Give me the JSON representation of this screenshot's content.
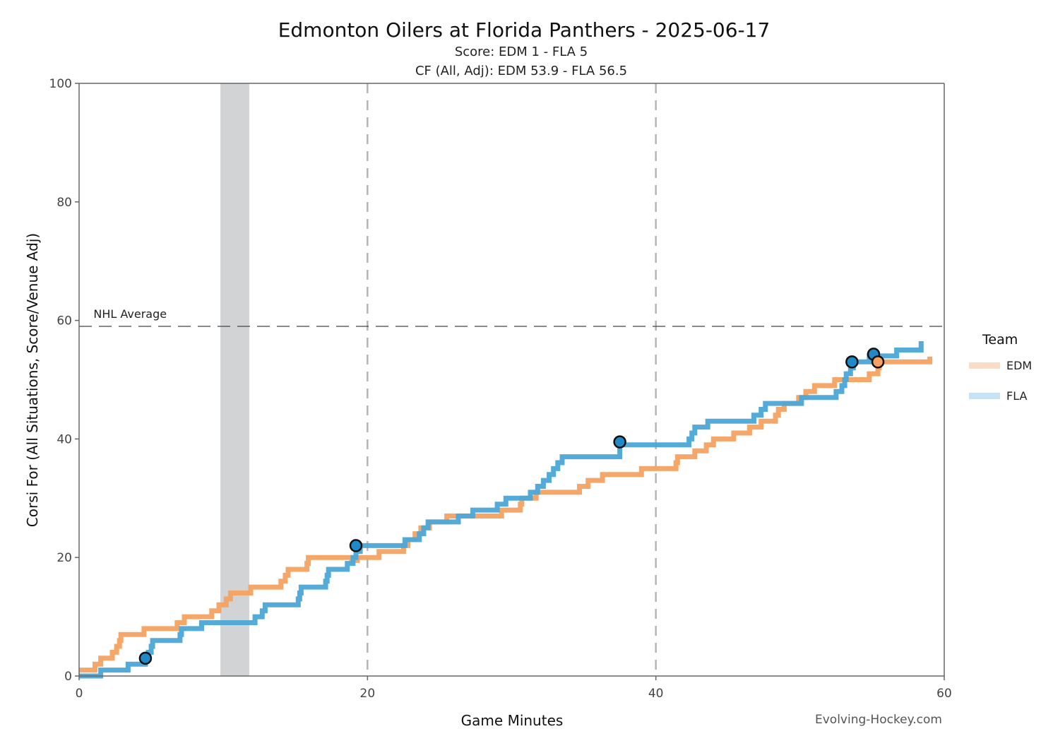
{
  "chart_data": {
    "type": "line",
    "title": "Edmonton Oilers at Florida Panthers - 2025-06-17",
    "subtitle_score": "Score: EDM 1 - FLA 5",
    "subtitle_cf": "CF (All, Adj): EDM 53.9 - FLA 56.5",
    "xlabel": "Game Minutes",
    "ylabel": "Corsi For (All Situations, Score/Venue Adj)",
    "xlim": [
      0,
      60
    ],
    "ylim": [
      0,
      100
    ],
    "x_ticks": [
      0,
      20,
      40,
      60
    ],
    "y_ticks": [
      0,
      20,
      40,
      60,
      80,
      100
    ],
    "period_lines": [
      20,
      40
    ],
    "shaded_interval": [
      9.8,
      11.8
    ],
    "reference_line": {
      "label": "NHL Average",
      "value": 59
    },
    "legend": {
      "title": "Team",
      "placement": "right"
    },
    "watermark": "Evolving-Hockey.com",
    "series": [
      {
        "name": "EDM",
        "color": "#f4a261",
        "legend_color": "#fbdcc4",
        "points": [
          [
            0,
            1
          ],
          [
            1.1,
            1
          ],
          [
            1.1,
            2
          ],
          [
            1.5,
            2
          ],
          [
            1.5,
            3
          ],
          [
            2.3,
            3
          ],
          [
            2.3,
            4
          ],
          [
            2.6,
            4
          ],
          [
            2.6,
            5
          ],
          [
            2.8,
            5
          ],
          [
            2.8,
            6
          ],
          [
            2.9,
            6
          ],
          [
            2.9,
            7
          ],
          [
            4.5,
            7
          ],
          [
            4.5,
            8
          ],
          [
            6.8,
            8
          ],
          [
            6.8,
            9
          ],
          [
            7.3,
            9
          ],
          [
            7.3,
            10
          ],
          [
            9.2,
            10
          ],
          [
            9.2,
            11
          ],
          [
            9.7,
            11
          ],
          [
            9.7,
            12
          ],
          [
            10.2,
            12
          ],
          [
            10.2,
            13
          ],
          [
            10.5,
            13
          ],
          [
            10.5,
            14
          ],
          [
            11.9,
            14
          ],
          [
            11.9,
            15
          ],
          [
            14,
            15
          ],
          [
            14,
            16
          ],
          [
            14.3,
            16
          ],
          [
            14.3,
            17
          ],
          [
            14.5,
            17
          ],
          [
            14.5,
            18
          ],
          [
            15.8,
            18
          ],
          [
            15.8,
            19
          ],
          [
            15.9,
            19
          ],
          [
            15.9,
            20
          ],
          [
            18.9,
            20
          ],
          [
            18.9,
            19.5
          ],
          [
            19.3,
            19.5
          ],
          [
            19.3,
            20
          ],
          [
            20.8,
            20
          ],
          [
            20.8,
            21
          ],
          [
            22.5,
            21
          ],
          [
            22.5,
            22
          ],
          [
            22.8,
            22
          ],
          [
            22.8,
            23
          ],
          [
            23.3,
            23
          ],
          [
            23.3,
            24
          ],
          [
            23.7,
            24
          ],
          [
            23.7,
            25
          ],
          [
            24.3,
            25
          ],
          [
            24.3,
            26
          ],
          [
            25.5,
            26
          ],
          [
            25.5,
            27
          ],
          [
            29.3,
            27
          ],
          [
            29.3,
            28
          ],
          [
            30.6,
            28
          ],
          [
            30.6,
            29
          ],
          [
            30.7,
            29
          ],
          [
            30.7,
            30
          ],
          [
            31.7,
            30
          ],
          [
            31.7,
            31
          ],
          [
            34.7,
            31
          ],
          [
            34.7,
            32
          ],
          [
            35.3,
            32
          ],
          [
            35.3,
            33
          ],
          [
            36.3,
            33
          ],
          [
            36.3,
            34
          ],
          [
            39,
            34
          ],
          [
            39,
            35
          ],
          [
            41.4,
            35
          ],
          [
            41.4,
            36
          ],
          [
            41.5,
            36
          ],
          [
            41.5,
            37
          ],
          [
            42.7,
            37
          ],
          [
            42.7,
            38
          ],
          [
            43.5,
            38
          ],
          [
            43.5,
            39
          ],
          [
            44,
            39
          ],
          [
            44,
            40
          ],
          [
            45.4,
            40
          ],
          [
            45.4,
            41
          ],
          [
            46.5,
            41
          ],
          [
            46.5,
            42
          ],
          [
            47.3,
            42
          ],
          [
            47.3,
            43
          ],
          [
            48.3,
            43
          ],
          [
            48.3,
            44
          ],
          [
            48.5,
            44
          ],
          [
            48.5,
            45
          ],
          [
            48.9,
            45
          ],
          [
            48.9,
            46
          ],
          [
            49.9,
            46
          ],
          [
            49.9,
            47
          ],
          [
            50.4,
            47
          ],
          [
            50.4,
            48
          ],
          [
            51,
            48
          ],
          [
            51,
            49
          ],
          [
            52.4,
            49
          ],
          [
            52.4,
            50
          ],
          [
            54.8,
            50
          ],
          [
            54.8,
            51
          ],
          [
            55.4,
            51
          ],
          [
            55.4,
            52
          ],
          [
            55.5,
            52
          ],
          [
            55.5,
            53
          ],
          [
            59,
            53
          ],
          [
            59,
            53.9
          ]
        ]
      },
      {
        "name": "FLA",
        "color": "#4ba6d6",
        "legend_color": "#c6e2f4",
        "points": [
          [
            0,
            0
          ],
          [
            1.5,
            0
          ],
          [
            1.5,
            1
          ],
          [
            3.4,
            1
          ],
          [
            3.4,
            2
          ],
          [
            4.6,
            2
          ],
          [
            4.6,
            3
          ],
          [
            4.8,
            3
          ],
          [
            4.8,
            4
          ],
          [
            5,
            4
          ],
          [
            5,
            5
          ],
          [
            5.1,
            5
          ],
          [
            5.1,
            6
          ],
          [
            7,
            6
          ],
          [
            7,
            7
          ],
          [
            7.1,
            7
          ],
          [
            7.1,
            8
          ],
          [
            8.5,
            8
          ],
          [
            8.5,
            9
          ],
          [
            12.2,
            9
          ],
          [
            12.2,
            10
          ],
          [
            12.7,
            10
          ],
          [
            12.7,
            11
          ],
          [
            12.9,
            11
          ],
          [
            12.9,
            12
          ],
          [
            15.2,
            12
          ],
          [
            15.2,
            13
          ],
          [
            15.3,
            13
          ],
          [
            15.3,
            14
          ],
          [
            15.4,
            14
          ],
          [
            15.4,
            15
          ],
          [
            17.1,
            15
          ],
          [
            17.1,
            16
          ],
          [
            17.2,
            16
          ],
          [
            17.2,
            17
          ],
          [
            17.3,
            17
          ],
          [
            17.3,
            18
          ],
          [
            18.6,
            18
          ],
          [
            18.6,
            19
          ],
          [
            19,
            19
          ],
          [
            19,
            20
          ],
          [
            19.2,
            20
          ],
          [
            19.2,
            21
          ],
          [
            19.5,
            21
          ],
          [
            19.5,
            22
          ],
          [
            22.6,
            22
          ],
          [
            22.6,
            23
          ],
          [
            23.6,
            23
          ],
          [
            23.6,
            24
          ],
          [
            23.9,
            24
          ],
          [
            23.9,
            25
          ],
          [
            24.2,
            25
          ],
          [
            24.2,
            26
          ],
          [
            26.3,
            26
          ],
          [
            26.3,
            27
          ],
          [
            27.3,
            27
          ],
          [
            27.3,
            28
          ],
          [
            29,
            28
          ],
          [
            29,
            29
          ],
          [
            29.6,
            29
          ],
          [
            29.6,
            30
          ],
          [
            31.3,
            30
          ],
          [
            31.3,
            31
          ],
          [
            31.8,
            31
          ],
          [
            31.8,
            32
          ],
          [
            32.2,
            32
          ],
          [
            32.2,
            33
          ],
          [
            32.6,
            33
          ],
          [
            32.6,
            34
          ],
          [
            32.9,
            34
          ],
          [
            32.9,
            35
          ],
          [
            33.2,
            35
          ],
          [
            33.2,
            36
          ],
          [
            33.5,
            36
          ],
          [
            33.5,
            37
          ],
          [
            37.5,
            37
          ],
          [
            37.5,
            39
          ],
          [
            42.3,
            39
          ],
          [
            42.3,
            40
          ],
          [
            42.5,
            40
          ],
          [
            42.5,
            41
          ],
          [
            42.7,
            41
          ],
          [
            42.7,
            42
          ],
          [
            43.6,
            42
          ],
          [
            43.6,
            43
          ],
          [
            46.8,
            43
          ],
          [
            46.8,
            44
          ],
          [
            47.3,
            44
          ],
          [
            47.3,
            45
          ],
          [
            47.6,
            45
          ],
          [
            47.6,
            46
          ],
          [
            50.1,
            46
          ],
          [
            50.1,
            47
          ],
          [
            52.5,
            47
          ],
          [
            52.5,
            48
          ],
          [
            52.9,
            48
          ],
          [
            52.9,
            49
          ],
          [
            53.1,
            49
          ],
          [
            53.1,
            50
          ],
          [
            53.2,
            50
          ],
          [
            53.2,
            51
          ],
          [
            53.5,
            51
          ],
          [
            53.5,
            52
          ],
          [
            53.7,
            52
          ],
          [
            53.7,
            53
          ],
          [
            54.8,
            53
          ],
          [
            54.8,
            54
          ],
          [
            56.7,
            54
          ],
          [
            56.7,
            55
          ],
          [
            58.4,
            55
          ],
          [
            58.4,
            56.5
          ]
        ]
      }
    ],
    "goal_markers": [
      {
        "team": "FLA",
        "x": 4.6,
        "y": 3
      },
      {
        "team": "FLA",
        "x": 19.2,
        "y": 22
      },
      {
        "team": "FLA",
        "x": 37.5,
        "y": 39.5
      },
      {
        "team": "FLA",
        "x": 53.6,
        "y": 53
      },
      {
        "team": "FLA",
        "x": 55.1,
        "y": 54.3
      },
      {
        "team": "EDM",
        "x": 55.4,
        "y": 53
      }
    ]
  }
}
